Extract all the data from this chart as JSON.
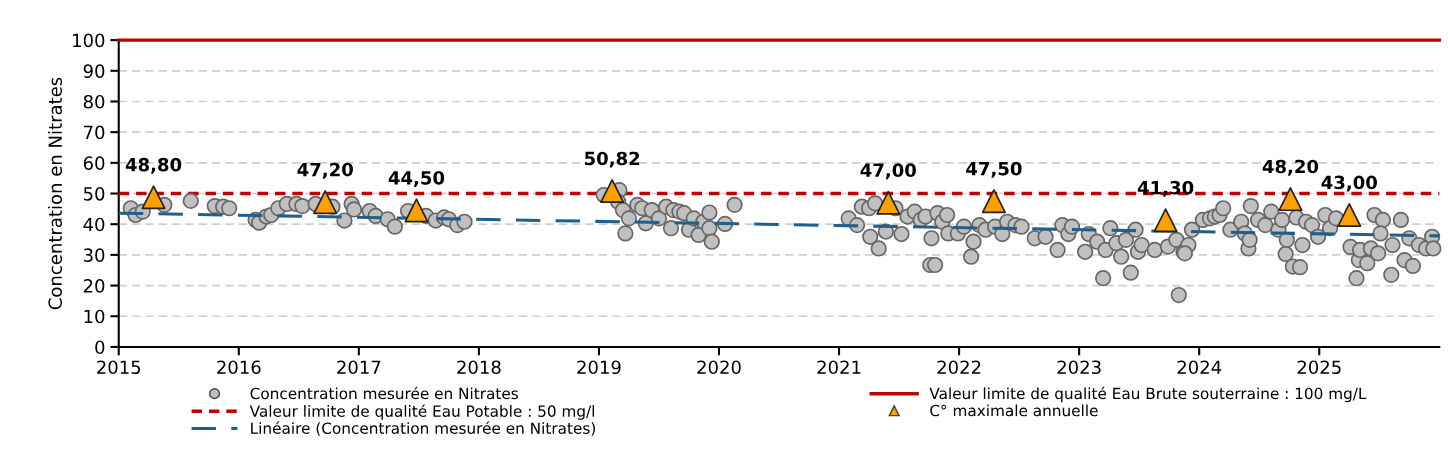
{
  "chart_data": {
    "type": "scatter",
    "ylabel": "Concentration en Nitrates",
    "xlim": [
      2015,
      2026
    ],
    "xticks": [
      2015,
      2016,
      2017,
      2018,
      2019,
      2020,
      2021,
      2022,
      2023,
      2024,
      2025
    ],
    "ylim": [
      0,
      100
    ],
    "yticks": [
      0,
      10,
      20,
      30,
      40,
      50,
      60,
      70,
      80,
      90,
      100
    ],
    "grid": "y",
    "legend": "bottom",
    "series": [
      {
        "name": "Concentration mesurée en Nitrates",
        "marker": "circle",
        "color": "#c0c0c0",
        "x": [
          2015.1,
          2015.14,
          2015.2,
          2015.38,
          2015.6,
          2015.8,
          2015.87,
          2015.92,
          2016.14,
          2016.17,
          2016.23,
          2016.27,
          2016.33,
          2016.4,
          2016.48,
          2016.53,
          2016.64,
          2016.78,
          2016.88,
          2016.94,
          2016.96,
          2017.09,
          2017.14,
          2017.24,
          2017.3,
          2017.41,
          2017.56,
          2017.64,
          2017.71,
          2017.75,
          2017.82,
          2017.88,
          2019.04,
          2019.17,
          2019.16,
          2019.22,
          2019.2,
          2019.25,
          2019.32,
          2019.36,
          2019.39,
          2019.44,
          2019.5,
          2019.56,
          2019.6,
          2019.62,
          2019.67,
          2019.71,
          2019.75,
          2019.79,
          2019.83,
          2019.87,
          2019.92,
          2019.92,
          2019.94,
          2020.05,
          2020.13,
          2021.08,
          2021.15,
          2021.19,
          2021.25,
          2021.26,
          2021.3,
          2021.33,
          2021.39,
          2021.47,
          2021.52,
          2021.57,
          2021.63,
          2021.68,
          2021.72,
          2021.76,
          2021.8,
          2021.77,
          2021.82,
          2021.86,
          2021.9,
          2021.91,
          2021.99,
          2022.04,
          2022.1,
          2022.12,
          2022.17,
          2022.22,
          2022.3,
          2022.36,
          2022.4,
          2022.47,
          2022.52,
          2022.63,
          2022.72,
          2022.82,
          2022.86,
          2022.91,
          2022.94,
          2023.05,
          2023.08,
          2023.15,
          2023.2,
          2023.22,
          2023.26,
          2023.31,
          2023.35,
          2023.39,
          2023.43,
          2023.47,
          2023.49,
          2023.52,
          2023.63,
          2023.74,
          2023.81,
          2023.83,
          2023.87,
          2023.91,
          2023.88,
          2023.94,
          2024.03,
          2024.09,
          2024.13,
          2024.17,
          2024.2,
          2024.26,
          2024.35,
          2024.38,
          2024.41,
          2024.43,
          2024.42,
          2024.49,
          2024.55,
          2024.6,
          2024.66,
          2024.69,
          2024.72,
          2024.73,
          2024.78,
          2024.84,
          2024.81,
          2024.86,
          2024.89,
          2024.94,
          2024.99,
          2025.05,
          2025.09,
          2025.14,
          2025.26,
          2025.31,
          2025.33,
          2025.34,
          2025.4,
          2025.43,
          2025.46,
          2025.49,
          2025.53,
          2025.51,
          2025.6,
          2025.61,
          2025.68,
          2025.71,
          2025.75,
          2025.78,
          2025.83,
          2025.89,
          2025.94,
          2025.95
        ],
        "values": [
          45.2,
          43.0,
          44.1,
          46.3,
          47.6,
          45.9,
          45.7,
          45.2,
          41.4,
          40.5,
          42.5,
          43.0,
          45.2,
          46.6,
          46.6,
          45.9,
          46.6,
          45.7,
          41.2,
          46.6,
          44.8,
          44.3,
          42.7,
          41.6,
          39.2,
          44.3,
          42.7,
          41.2,
          42.2,
          41.6,
          39.7,
          40.8,
          49.5,
          51.1,
          47.3,
          37.0,
          44.6,
          41.9,
          46.3,
          45.2,
          40.3,
          44.6,
          41.9,
          45.7,
          38.7,
          44.6,
          44.1,
          43.6,
          38.2,
          41.9,
          36.5,
          40.8,
          38.7,
          43.8,
          34.3,
          40.1,
          46.3,
          41.9,
          39.7,
          45.7,
          45.2,
          35.9,
          46.8,
          32.1,
          37.6,
          45.2,
          36.8,
          42.5,
          44.1,
          41.4,
          42.5,
          26.7,
          26.7,
          35.4,
          43.6,
          40.8,
          43.0,
          37.0,
          37.0,
          39.2,
          29.4,
          34.3,
          39.7,
          38.2,
          39.2,
          36.8,
          40.8,
          39.7,
          39.2,
          35.4,
          35.9,
          31.6,
          39.7,
          36.8,
          39.2,
          31.0,
          36.8,
          34.3,
          22.4,
          31.6,
          38.7,
          33.8,
          29.4,
          34.9,
          24.2,
          38.2,
          31.0,
          33.2,
          31.6,
          32.7,
          34.9,
          16.9,
          31.0,
          33.2,
          30.5,
          38.2,
          41.4,
          41.9,
          42.5,
          43.0,
          45.2,
          38.2,
          40.8,
          37.0,
          32.1,
          45.9,
          34.9,
          41.4,
          39.7,
          44.1,
          38.2,
          41.4,
          30.3,
          34.9,
          26.2,
          26.0,
          42.2,
          33.2,
          40.8,
          39.7,
          35.9,
          43.0,
          38.7,
          41.9,
          32.6,
          22.4,
          28.3,
          31.6,
          27.3,
          32.1,
          43.0,
          30.5,
          41.4,
          37.0,
          23.5,
          33.2,
          41.4,
          28.3,
          35.4,
          26.4,
          33.2,
          32.1,
          35.9,
          32.1
        ]
      },
      {
        "name": "Linéaire (Concentration mesurée en Nitrates)",
        "type": "line",
        "line_style": "dashed",
        "color": "#1f5f8b",
        "x": [
          2015,
          2026
        ],
        "values": [
          43.6,
          36.2
        ]
      },
      {
        "name": "C° maximale annuelle",
        "marker": "triangle",
        "color": "#ffa000",
        "x": [
          2015.29,
          2016.72,
          2017.48,
          2019.11,
          2021.41,
          2022.29,
          2023.72,
          2024.76,
          2025.25
        ],
        "values": [
          48.8,
          47.2,
          44.5,
          50.82,
          47.0,
          47.5,
          41.3,
          48.2,
          43.0
        ],
        "value_labels": [
          "48,80",
          "47,20",
          "44,50",
          "50,82",
          "47,00",
          "47,50",
          "41,30",
          "48,20",
          "43,00"
        ]
      }
    ],
    "ref_lines": [
      {
        "axis": "y",
        "value": 100,
        "label": "Valeur limite de qualité Eau Brute souterraine : 100 mg/L",
        "color": "#c00000",
        "line_style": "solid"
      },
      {
        "axis": "y",
        "value": 50,
        "label": "Valeur limite de qualité Eau Potable : 50 mg/l",
        "color": "#c00000",
        "line_style": "dotted"
      }
    ]
  }
}
